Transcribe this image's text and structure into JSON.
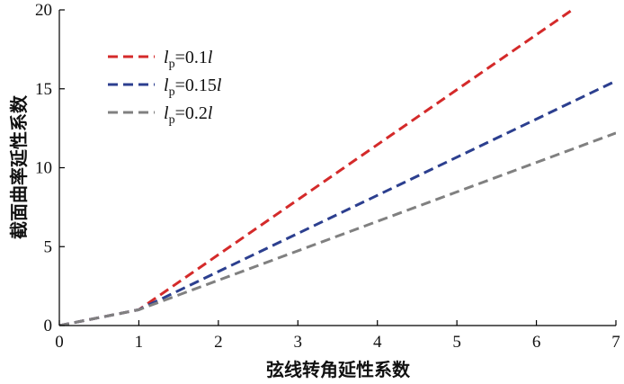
{
  "chart_data": {
    "type": "line",
    "xlabel": "弦线转角延性系数",
    "ylabel": "截面曲率延性系数",
    "xlim": [
      0,
      7
    ],
    "ylim": [
      0,
      20
    ],
    "xticks": [
      "0",
      "1",
      "2",
      "3",
      "4",
      "5",
      "6",
      "7"
    ],
    "yticks": [
      "0",
      "5",
      "10",
      "15",
      "20"
    ],
    "grid": false,
    "legend_position": "top-left",
    "series": [
      {
        "name": "lp=0.1l",
        "legend": {
          "pre": "l",
          "sub": "p",
          "mid": "=0.1",
          "post": "l"
        },
        "color": "#d42a2a",
        "x": [
          0,
          1,
          6.45
        ],
        "y": [
          0,
          1,
          20
        ]
      },
      {
        "name": "lp=0.15l",
        "legend": {
          "pre": "l",
          "sub": "p",
          "mid": "=0.15",
          "post": "l"
        },
        "color": "#2c3f8f",
        "x": [
          0,
          1,
          7
        ],
        "y": [
          0,
          1,
          15.5
        ]
      },
      {
        "name": "lp=0.2l",
        "legend": {
          "pre": "l",
          "sub": "p",
          "mid": "=0.2",
          "post": "l"
        },
        "color": "#808080",
        "x": [
          0,
          1,
          7
        ],
        "y": [
          0,
          1,
          12.2
        ]
      }
    ]
  }
}
